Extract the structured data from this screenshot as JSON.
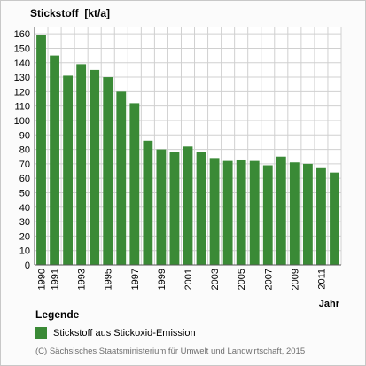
{
  "chart_data": {
    "type": "bar",
    "title": "Stickstoff  [kt/a]",
    "xlabel": "Jahr",
    "ylabel": "",
    "categories": [
      "1990",
      "1991",
      "1992",
      "1993",
      "1994",
      "1995",
      "1996",
      "1997",
      "1998",
      "1999",
      "2000",
      "2001",
      "2002",
      "2003",
      "2004",
      "2005",
      "2006",
      "2007",
      "2008",
      "2009",
      "2010",
      "2011",
      "2012"
    ],
    "x_tick_labels": [
      "1990",
      "1991",
      "1993",
      "1995",
      "1997",
      "1999",
      "2001",
      "2003",
      "2005",
      "2007",
      "2009",
      "2011"
    ],
    "series": [
      {
        "name": "Stickstoff aus Stickoxid-Emission",
        "values": [
          159,
          145,
          131,
          139,
          135,
          130,
          120,
          112,
          86,
          80,
          78,
          82,
          78,
          74,
          72,
          73,
          72,
          69,
          75,
          71,
          70,
          67,
          64
        ]
      }
    ],
    "ylim": [
      0,
      165
    ],
    "y_ticks": [
      0,
      10,
      20,
      30,
      40,
      50,
      60,
      70,
      80,
      90,
      100,
      110,
      120,
      130,
      140,
      150,
      160
    ],
    "grid": true,
    "bar_color": "#3a8a36"
  },
  "legend": {
    "title": "Legende",
    "items": [
      {
        "label": "Stickstoff aus Stickoxid-Emission",
        "color": "#3a8a36"
      }
    ]
  },
  "copyright": "(C) Sächsisches Staatsministerium für Umwelt und Landwirtschaft, 2015"
}
